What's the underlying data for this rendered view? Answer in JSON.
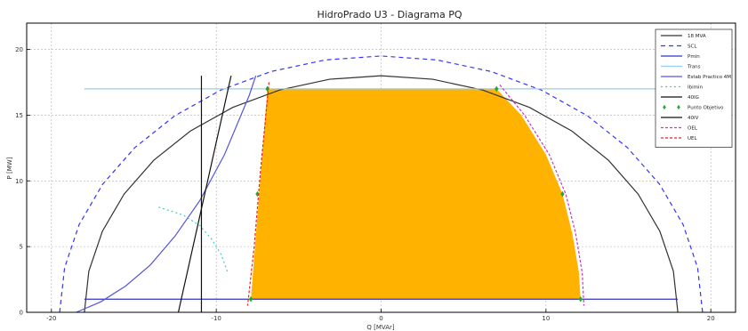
{
  "chart_data": {
    "type": "line",
    "title": "HidroPrado U3 - Diagrama PQ",
    "xlabel": "Q [MVAr]",
    "ylabel": "P [MW]",
    "xlim": [
      -21.5,
      21.5
    ],
    "ylim": [
      0,
      22
    ],
    "xticks": [
      -20,
      -10,
      0,
      10,
      20
    ],
    "yticks": [
      0,
      5,
      10,
      15,
      20
    ],
    "grid": true,
    "legend_placement": "top-right",
    "operating_region": {
      "fill": "#FFB300",
      "polygon": [
        [
          -7.9,
          1.0
        ],
        [
          -6.9,
          17.0
        ],
        [
          7.0,
          17.0
        ],
        [
          8.5,
          15.0
        ],
        [
          10.0,
          12.0
        ],
        [
          11.0,
          9.0
        ],
        [
          11.6,
          6.0
        ],
        [
          12.0,
          3.0
        ],
        [
          12.1,
          1.0
        ]
      ]
    },
    "series": [
      {
        "name": "18 MVA",
        "color": "#333333",
        "dash": "",
        "kind": "line",
        "x": [
          -18.0,
          -17.73,
          -16.91,
          -15.59,
          -13.79,
          -11.57,
          -9.0,
          -6.16,
          -3.13,
          0.0,
          3.13,
          6.16,
          9.0,
          11.57,
          13.79,
          15.59,
          16.91,
          17.73,
          18.0
        ],
        "y": [
          0.0,
          3.13,
          6.16,
          9.0,
          11.57,
          13.79,
          15.59,
          16.91,
          17.73,
          18.0,
          17.73,
          16.91,
          15.59,
          13.79,
          11.57,
          9.0,
          6.16,
          3.13,
          0.0
        ]
      },
      {
        "name": "SCL",
        "color": "#3333ff",
        "dash": "5,4",
        "kind": "line",
        "x": [
          -19.5,
          -19.2,
          -18.32,
          -16.89,
          -14.94,
          -12.53,
          -9.75,
          -6.67,
          -3.39,
          0.0,
          3.39,
          6.67,
          9.75,
          12.53,
          14.94,
          16.89,
          18.32,
          19.2,
          19.5
        ],
        "y": [
          0.0,
          3.39,
          6.67,
          9.75,
          12.53,
          14.94,
          16.89,
          18.32,
          19.2,
          19.5,
          19.2,
          18.32,
          16.89,
          14.94,
          12.53,
          9.75,
          6.67,
          3.39,
          0.0
        ]
      },
      {
        "name": "Pmin",
        "color": "#3333cc",
        "dash": "",
        "kind": "line",
        "x": [
          -18.0,
          18.0
        ],
        "y": [
          1.0,
          1.0
        ]
      },
      {
        "name": "Trans",
        "color": "#99ccee",
        "dash": "",
        "kind": "line",
        "x": [
          -18.0,
          18.0
        ],
        "y": [
          17.0,
          17.0
        ]
      },
      {
        "name": "Estab Practico 4M",
        "color": "#5555dd",
        "dash": "",
        "kind": "line",
        "x": [
          -18.5,
          -17.0,
          -15.5,
          -14.0,
          -12.5,
          -11.0,
          -9.5,
          -8.0,
          -7.6
        ],
        "y": [
          0.0,
          0.8,
          2.0,
          3.6,
          5.8,
          8.5,
          12.0,
          16.5,
          18.0
        ]
      },
      {
        "name": "Ibimin",
        "color": "#44cccc",
        "dash": "2,3",
        "kind": "line",
        "x": [
          -13.5,
          -12.0,
          -11.0,
          -10.3,
          -9.7,
          -9.3
        ],
        "y": [
          8.0,
          7.4,
          6.6,
          5.6,
          4.4,
          3.0
        ]
      },
      {
        "name": "40IG",
        "color": "#111111",
        "dash": "",
        "kind": "line",
        "x": [
          -12.3,
          -9.1
        ],
        "y": [
          0.0,
          18.0
        ]
      },
      {
        "name": "Punto Objetivo",
        "color": "#22aa22",
        "dash": "",
        "kind": "points",
        "x": [
          -7.9,
          -7.5,
          -6.9,
          7.0,
          11.0,
          12.1
        ],
        "y": [
          1.0,
          9.0,
          17.0,
          17.0,
          9.0,
          1.0
        ]
      },
      {
        "name": "40IV",
        "color": "#111111",
        "dash": "",
        "kind": "line",
        "x": [
          -10.9,
          -10.9
        ],
        "y": [
          0.0,
          18.0
        ]
      },
      {
        "name": "OEL",
        "color": "#cc33cc",
        "dash": "3,2",
        "kind": "line",
        "x": [
          7.2,
          8.7,
          10.2,
          11.2,
          11.8,
          12.2,
          12.3
        ],
        "y": [
          17.3,
          15.0,
          12.0,
          9.0,
          6.0,
          3.0,
          0.5
        ]
      },
      {
        "name": "UEL",
        "color": "#ee2222",
        "dash": "3,2",
        "kind": "line",
        "x": [
          -6.8,
          -7.3,
          -7.7,
          -8.1
        ],
        "y": [
          17.5,
          11.0,
          5.0,
          0.5
        ]
      }
    ]
  }
}
